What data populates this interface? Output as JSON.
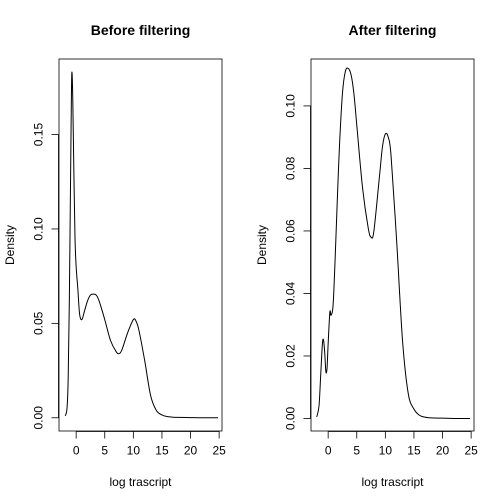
{
  "chart_data": [
    {
      "type": "line",
      "title": "Before filtering",
      "xlabel": "log trascript",
      "ylabel": "Density",
      "xlim": [
        -3,
        25.5
      ],
      "ylim": [
        -0.007,
        0.19
      ],
      "xticks": [
        0,
        5,
        10,
        15,
        20,
        25
      ],
      "yticks": [
        0.0,
        0.05,
        0.1,
        0.15
      ],
      "ytick_labels": [
        "0.00",
        "0.05",
        "0.10",
        "0.15"
      ],
      "grid": false,
      "series": [
        {
          "x": [
            -1.9,
            -1.6,
            -1.4,
            -1.2,
            -1.0,
            -0.85,
            -0.75,
            -0.6,
            -0.4,
            -0.2,
            0,
            0.3,
            0.6,
            1.0,
            1.5,
            2.0,
            2.5,
            3.0,
            3.5,
            4.0,
            5.0,
            6.0,
            7.0,
            7.5,
            8.0,
            9.0,
            10.0,
            10.5,
            11.0,
            12.0,
            13.0,
            14.0,
            15.0,
            16.0,
            17.0,
            18.0,
            20.0,
            22.0,
            24.8
          ],
          "y": [
            0.001,
            0.005,
            0.02,
            0.06,
            0.12,
            0.165,
            0.183,
            0.17,
            0.13,
            0.095,
            0.08,
            0.068,
            0.055,
            0.052,
            0.057,
            0.062,
            0.065,
            0.0655,
            0.065,
            0.062,
            0.052,
            0.041,
            0.035,
            0.034,
            0.036,
            0.045,
            0.052,
            0.051,
            0.046,
            0.03,
            0.012,
            0.004,
            0.0015,
            0.0006,
            0.0003,
            0.0002,
            0.0001,
            0.0,
            0.0
          ]
        }
      ]
    },
    {
      "type": "line",
      "title": "After filtering",
      "xlabel": "log trascript",
      "ylabel": "Density",
      "xlim": [
        -3,
        25.5
      ],
      "ylim": [
        -0.004,
        0.115
      ],
      "xticks": [
        0,
        5,
        10,
        15,
        20,
        25
      ],
      "yticks": [
        0.0,
        0.02,
        0.04,
        0.06,
        0.08,
        0.1
      ],
      "ytick_labels": [
        "0.00",
        "0.02",
        "0.04",
        "0.06",
        "0.08",
        "0.10"
      ],
      "grid": false,
      "series": [
        {
          "x": [
            -2.0,
            -1.6,
            -1.3,
            -1.0,
            -0.8,
            -0.6,
            -0.4,
            -0.2,
            0.0,
            0.3,
            0.5,
            0.8,
            1.0,
            1.3,
            1.6,
            2.0,
            2.5,
            3.0,
            3.5,
            4.0,
            4.5,
            5.0,
            6.0,
            7.0,
            7.5,
            8.0,
            9.0,
            9.5,
            10.0,
            10.5,
            11.0,
            12.0,
            13.0,
            14.0,
            15.0,
            16.0,
            17.0,
            18.0,
            20.0,
            22.0,
            24.8
          ],
          "y": [
            0.0005,
            0.004,
            0.014,
            0.024,
            0.025,
            0.021,
            0.015,
            0.016,
            0.024,
            0.034,
            0.033,
            0.035,
            0.041,
            0.055,
            0.07,
            0.088,
            0.104,
            0.111,
            0.112,
            0.11,
            0.104,
            0.094,
            0.074,
            0.061,
            0.058,
            0.06,
            0.078,
            0.087,
            0.091,
            0.09,
            0.084,
            0.056,
            0.025,
            0.008,
            0.003,
            0.001,
            0.0004,
            0.0002,
            0.0001,
            0.0,
            0.0
          ]
        }
      ]
    }
  ]
}
